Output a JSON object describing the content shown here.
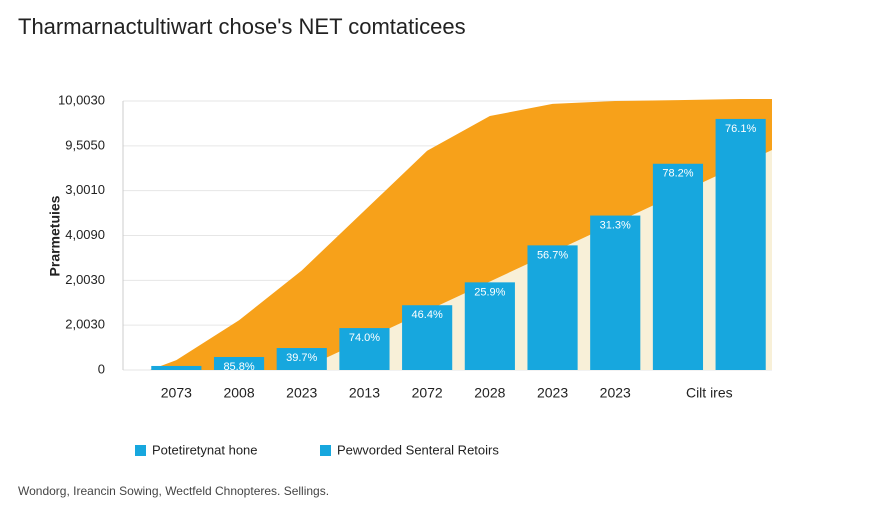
{
  "chart_data": {
    "type": "bar",
    "title": "Tharmarnactultiwart chose's NET comtaticees",
    "y_label": "Prarmetuies",
    "footer": "Wondorg, Ireancin Sowing, Wectfeld Chnopteres. Sellings.",
    "categories": [
      "2073",
      "2008",
      "2023",
      "2013",
      "2072",
      "2028",
      "2023",
      "2023",
      null,
      "Cilt ires"
    ],
    "series": [
      {
        "type": "area",
        "color": "#f7a11a",
        "values": [
          440,
          2220,
          4440,
          7110,
          9780,
          11330,
          11870,
          12000,
          12040,
          12090
        ]
      },
      {
        "type": "bar",
        "color": "#17a7de",
        "values": [
          180,
          580,
          980,
          1870,
          2890,
          3910,
          5560,
          6890,
          9200,
          11200
        ]
      }
    ],
    "bar_labels": [
      null,
      "85.8%",
      "39.7%",
      "74.0%",
      "46.4%",
      "25.9%",
      "56.7%",
      "31.3%",
      "78.2%",
      "76.1%"
    ],
    "ylim": [
      0,
      12000
    ],
    "yticks": [
      0,
      {
        "value": 2000,
        "label": "2,0030"
      },
      {
        "value": 4000,
        "label": "2,0030"
      },
      {
        "value": 6000,
        "label": "4,0090"
      },
      {
        "value": 8000,
        "label": "3,0010"
      },
      {
        "value": 10000,
        "label": "9,5050"
      },
      {
        "value": 12000,
        "label": "10,0030"
      }
    ],
    "grid": true,
    "legend": [
      {
        "label": "Potetiretynat hone",
        "color": "#17a7de"
      },
      {
        "label": "Pewvorded Senteral Retoirs",
        "color": "#17a7de"
      }
    ]
  }
}
